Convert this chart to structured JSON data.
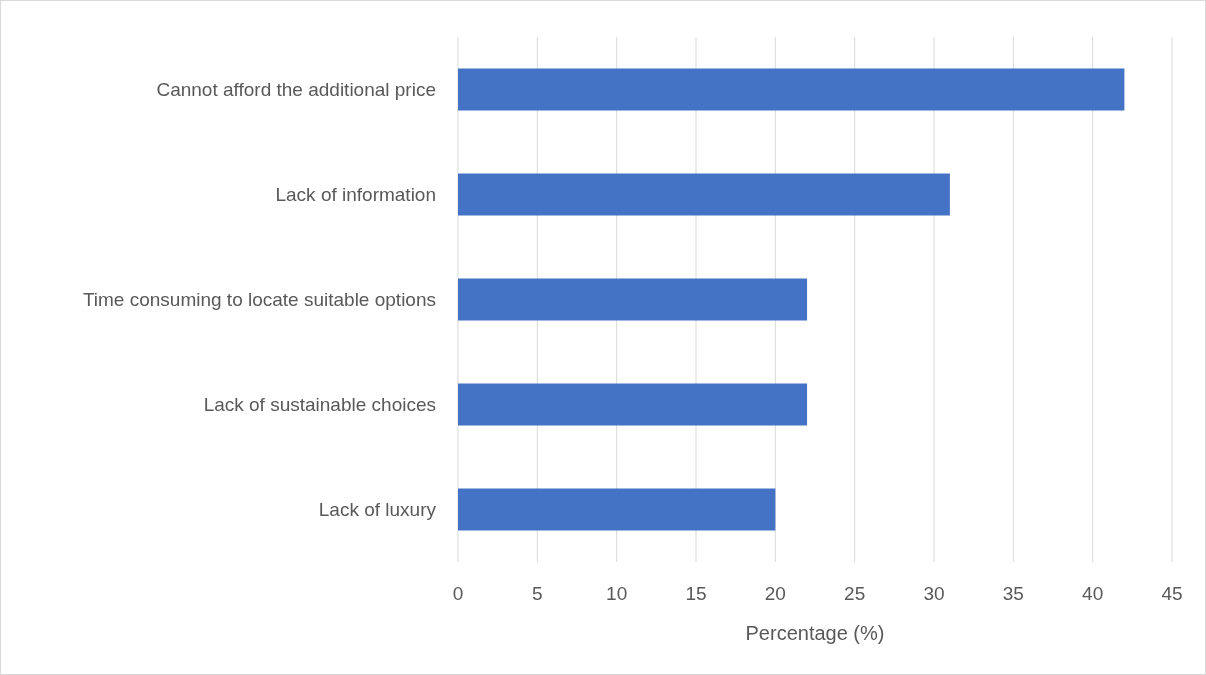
{
  "chart_data": {
    "type": "bar",
    "orientation": "horizontal",
    "categories": [
      "Cannot afford the additional price",
      "Lack of information",
      "Time consuming to locate suitable options",
      "Lack of sustainable choices",
      "Lack of luxury"
    ],
    "values": [
      42,
      31,
      22,
      22,
      20
    ],
    "color": "#4472c4",
    "xlabel": "Percentage (%)",
    "xlim": [
      0,
      45
    ],
    "xticks": [
      0,
      5,
      10,
      15,
      20,
      25,
      30,
      35,
      40,
      45
    ],
    "grid": "x"
  }
}
